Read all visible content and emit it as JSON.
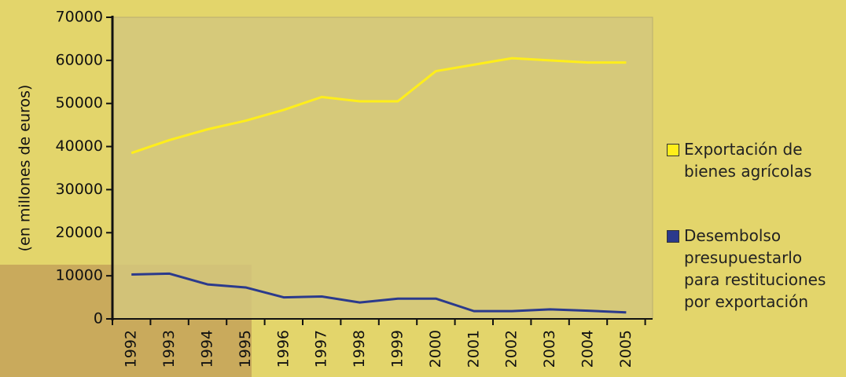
{
  "chart_data": {
    "type": "line",
    "y_label": "(en millones de euros)",
    "categories": [
      "1992",
      "1993",
      "1994",
      "1995",
      "1996",
      "1997",
      "1998",
      "1999",
      "2000",
      "2001",
      "2002",
      "2003",
      "2004",
      "2005"
    ],
    "series": [
      {
        "name": "Exportación de bienes agrícolas",
        "color": "#ffee1a",
        "values": [
          38500,
          41500,
          44000,
          46000,
          48500,
          51500,
          50500,
          50500,
          57500,
          59000,
          60500,
          60000,
          59500,
          59500
        ]
      },
      {
        "name": "Desembolso presupuestarlo para restituciones por exportación",
        "color": "#2b3a8c",
        "values": [
          10300,
          10500,
          8000,
          7300,
          5000,
          5200,
          3800,
          4700,
          4700,
          1800,
          1800,
          2200,
          1900,
          1500
        ]
      }
    ],
    "ylim": [
      0,
      70000
    ],
    "yticks": [
      0,
      10000,
      20000,
      30000,
      40000,
      50000,
      60000,
      70000
    ]
  }
}
